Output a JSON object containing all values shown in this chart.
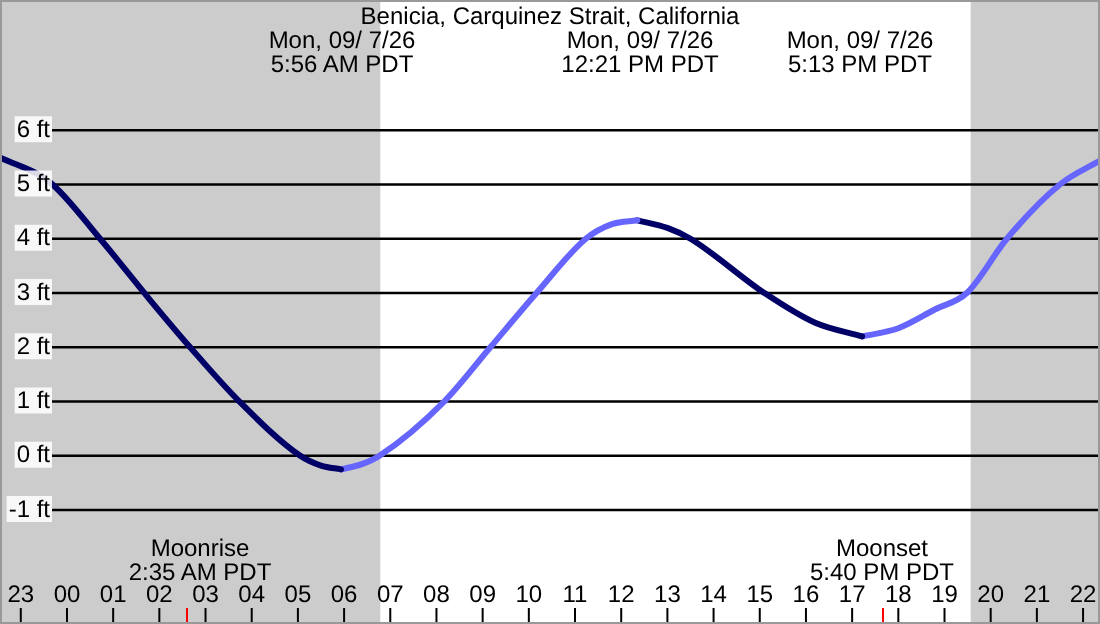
{
  "chart_data": {
    "type": "line",
    "title": "Benicia, Carquinez Strait, California",
    "xlim": [
      "--09-06T22:33",
      "--09-07T22:22"
    ],
    "ylim": [
      -3.1,
      8.4
    ],
    "xticks": [
      {
        "value": "--09-06T23:00",
        "label": "23"
      },
      {
        "value": "--09-07T00:00",
        "label": "00"
      },
      {
        "value": "--09-07T01:00",
        "label": "01"
      },
      {
        "value": "--09-07T02:00",
        "label": "02"
      },
      {
        "value": "--09-07T03:00",
        "label": "03"
      },
      {
        "value": "--09-07T04:00",
        "label": "04"
      },
      {
        "value": "--09-07T05:00",
        "label": "05"
      },
      {
        "value": "--09-07T06:00",
        "label": "06"
      },
      {
        "value": "--09-07T07:00",
        "label": "07"
      },
      {
        "value": "--09-07T08:00",
        "label": "08"
      },
      {
        "value": "--09-07T09:00",
        "label": "09"
      },
      {
        "value": "--09-07T10:00",
        "label": "10"
      },
      {
        "value": "--09-07T11:00",
        "label": "11"
      },
      {
        "value": "--09-07T12:00",
        "label": "12"
      },
      {
        "value": "--09-07T13:00",
        "label": "13"
      },
      {
        "value": "--09-07T14:00",
        "label": "14"
      },
      {
        "value": "--09-07T15:00",
        "label": "15"
      },
      {
        "value": "--09-07T16:00",
        "label": "16"
      },
      {
        "value": "--09-07T17:00",
        "label": "17"
      },
      {
        "value": "--09-07T18:00",
        "label": "18"
      },
      {
        "value": "--09-07T19:00",
        "label": "19"
      },
      {
        "value": "--09-07T20:00",
        "label": "20"
      },
      {
        "value": "--09-07T21:00",
        "label": "21"
      },
      {
        "value": "--09-07T22:00",
        "label": "22"
      }
    ],
    "yticks": [
      {
        "value": -1,
        "label": "-1 ft"
      },
      {
        "value": 0,
        "label": "0 ft"
      },
      {
        "value": 1,
        "label": "1 ft"
      },
      {
        "value": 2,
        "label": "2 ft"
      },
      {
        "value": 3,
        "label": "3 ft"
      },
      {
        "value": 4,
        "label": "4 ft"
      },
      {
        "value": 5,
        "label": "5 ft"
      },
      {
        "value": 6,
        "label": "6 ft"
      }
    ],
    "grid": "y",
    "legend": false,
    "marker": "none",
    "series": [
      {
        "color": "#000066",
        "x": [
          "--09-06T22:33",
          "--09-06T23:38",
          "--09-07T00:43",
          "--09-07T01:48",
          "--09-07T02:40",
          "--09-07T03:44",
          "--09-07T05:03",
          "--09-07T05:30",
          "--09-07T05:56"
        ],
        "values": [
          5.5,
          5.04,
          4.0,
          2.87,
          2.0,
          1.0,
          0,
          -0.18,
          -0.25
        ]
      },
      {
        "color": "#6666ff",
        "x": [
          "--09-07T05:56",
          "--09-07T06:24",
          "--09-07T06:46",
          "--09-07T08:10",
          "--09-07T09:10",
          "--09-07T10:10",
          "--09-07T11:14",
          "--09-07T11:48",
          "--09-07T12:21"
        ],
        "values": [
          -0.25,
          -0.15,
          0,
          1.0,
          2.0,
          3.0,
          4.0,
          4.27,
          4.34
        ]
      },
      {
        "color": "#000066",
        "x": [
          "--09-07T12:21",
          "--09-07T13:00",
          "--09-07T13:30",
          "--09-07T15:06",
          "--09-07T16:12",
          "--09-07T17:13"
        ],
        "values": [
          4.34,
          4.2,
          4.0,
          3.0,
          2.45,
          2.2
        ]
      },
      {
        "color": "#6666ff",
        "x": [
          "--09-07T17:13",
          "--09-07T18:00",
          "--09-07T18:48",
          "--09-07T19:29",
          "--09-07T20:21",
          "--09-07T21:30",
          "--09-07T22:22"
        ],
        "values": [
          2.2,
          2.35,
          2.7,
          3.0,
          4.0,
          5.0,
          5.44
        ]
      }
    ],
    "bands": [
      {
        "axis": "x",
        "from": "--09-06T22:33",
        "to": "--09-07T06:47",
        "color": "#cccccc"
      },
      {
        "axis": "x",
        "from": "--09-07T19:34",
        "to": "--09-07T22:22",
        "color": "#cccccc"
      }
    ],
    "annotations": [
      "Mon, 09/ 7/26\n5:56 AM PDT",
      "Mon, 09/ 7/26\n12:21 PM PDT",
      "Mon, 09/ 7/26\n5:13 PM PDT",
      "Moonrise\n2:35 AM PDT",
      "Moonset\n5:40 PM PDT"
    ]
  }
}
